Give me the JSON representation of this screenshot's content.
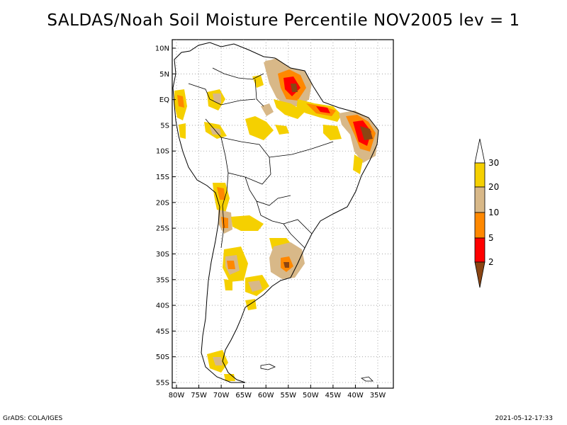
{
  "title": "SALDAS/Noah Soil Moisture Percentile NOV2005 lev = 1",
  "footer": {
    "left": "GrADS: COLA/IGES",
    "right": "2021-05-12-17:33"
  },
  "map": {
    "lat_ticks": [
      "10N",
      "5N",
      "EQ",
      "5S",
      "10S",
      "15S",
      "20S",
      "25S",
      "30S",
      "35S",
      "40S",
      "45S",
      "50S",
      "55S"
    ],
    "lon_ticks": [
      "80W",
      "75W",
      "70W",
      "65W",
      "60W",
      "55W",
      "50W",
      "45W",
      "40W",
      "35W"
    ],
    "lat_range": [
      -56,
      11
    ],
    "lon_range": [
      -81,
      -32
    ],
    "grid": "dotted"
  },
  "legend": {
    "labels": [
      "30",
      "20",
      "10",
      "5",
      "2"
    ],
    "colors": {
      "above_30": "#ffffff",
      "20_30": "#f5d000",
      "10_20": "#d8b888",
      "5_10": "#ff8800",
      "2_5": "#ff0000",
      "below_2": "#8b4513"
    }
  }
}
